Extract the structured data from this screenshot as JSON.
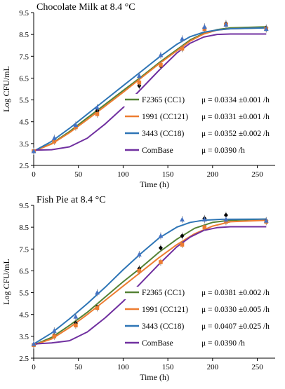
{
  "chart_data": [
    {
      "type": "line",
      "title": "Chocolate Milk at 8.4 °C",
      "xlabel": "Time (h)",
      "ylabel": "Log CFU/mL",
      "xlim": [
        0,
        270
      ],
      "ylim": [
        2.5,
        9.5
      ],
      "xticks": [
        "0",
        "50",
        "100",
        "150",
        "200",
        "250"
      ],
      "yticks": [
        "2.5",
        "3.5",
        "4.5",
        "5.5",
        "6.5",
        "7.5",
        "8.5",
        "9.5"
      ],
      "legend_position": "right",
      "series": [
        {
          "name": "F2365 (CC1)",
          "mu_label": "μ = 0.0334 ±0.001 /h",
          "color": "#548235",
          "marker_color": "#000000",
          "marker": "diamond",
          "points": [
            [
              0,
              3.15
            ],
            [
              23,
              3.65
            ],
            [
              47,
              4.3
            ],
            [
              71,
              5.0
            ],
            [
              118,
              6.15
            ],
            [
              142,
              7.05
            ],
            [
              166,
              7.85
            ],
            [
              191,
              8.8
            ],
            [
              215,
              9.0
            ],
            [
              260,
              8.8
            ]
          ],
          "fit": [
            [
              0,
              3.15
            ],
            [
              20,
              3.5
            ],
            [
              40,
              4.05
            ],
            [
              60,
              4.68
            ],
            [
              80,
              5.3
            ],
            [
              100,
              5.93
            ],
            [
              120,
              6.55
            ],
            [
              140,
              7.2
            ],
            [
              160,
              7.8
            ],
            [
              175,
              8.25
            ],
            [
              190,
              8.55
            ],
            [
              205,
              8.72
            ],
            [
              220,
              8.8
            ],
            [
              260,
              8.85
            ]
          ]
        },
        {
          "name": "1991 (CC121)",
          "mu_label": "μ = 0.0331 ±0.001 /h",
          "color": "#ED7D31",
          "marker_color": "#ED7D31",
          "marker": "square",
          "points": [
            [
              0,
              3.15
            ],
            [
              23,
              3.6
            ],
            [
              47,
              4.25
            ],
            [
              71,
              4.85
            ],
            [
              118,
              6.3
            ],
            [
              142,
              7.1
            ],
            [
              166,
              7.85
            ],
            [
              191,
              8.75
            ],
            [
              215,
              8.95
            ],
            [
              260,
              8.75
            ]
          ],
          "fit": [
            [
              0,
              3.15
            ],
            [
              20,
              3.48
            ],
            [
              40,
              4.0
            ],
            [
              60,
              4.6
            ],
            [
              80,
              5.22
            ],
            [
              100,
              5.85
            ],
            [
              120,
              6.5
            ],
            [
              140,
              7.15
            ],
            [
              160,
              7.75
            ],
            [
              175,
              8.2
            ],
            [
              190,
              8.52
            ],
            [
              205,
              8.7
            ],
            [
              220,
              8.76
            ],
            [
              260,
              8.8
            ]
          ]
        },
        {
          "name": "3443 (CC18)",
          "mu_label": "μ = 0.0352 ±0.002 /h",
          "color": "#2E75B6",
          "marker_color": "#4472C4",
          "marker": "triangle",
          "points": [
            [
              0,
              3.15
            ],
            [
              23,
              3.75
            ],
            [
              47,
              4.35
            ],
            [
              71,
              5.15
            ],
            [
              118,
              6.6
            ],
            [
              142,
              7.55
            ],
            [
              166,
              8.3
            ],
            [
              191,
              8.85
            ],
            [
              215,
              8.95
            ],
            [
              260,
              8.75
            ]
          ],
          "fit": [
            [
              0,
              3.15
            ],
            [
              20,
              3.6
            ],
            [
              40,
              4.2
            ],
            [
              60,
              4.85
            ],
            [
              80,
              5.5
            ],
            [
              100,
              6.15
            ],
            [
              120,
              6.8
            ],
            [
              140,
              7.45
            ],
            [
              160,
              8.05
            ],
            [
              175,
              8.4
            ],
            [
              190,
              8.6
            ],
            [
              205,
              8.7
            ],
            [
              220,
              8.76
            ],
            [
              260,
              8.8
            ]
          ]
        },
        {
          "name": "ComBase",
          "mu_label": "μ = 0.0390 /h",
          "color": "#7030A0",
          "points": [],
          "fit": [
            [
              0,
              3.2
            ],
            [
              20,
              3.22
            ],
            [
              40,
              3.35
            ],
            [
              60,
              3.75
            ],
            [
              80,
              4.4
            ],
            [
              100,
              5.15
            ],
            [
              120,
              6.0
            ],
            [
              140,
              6.85
            ],
            [
              160,
              7.65
            ],
            [
              175,
              8.1
            ],
            [
              190,
              8.38
            ],
            [
              205,
              8.5
            ],
            [
              220,
              8.52
            ],
            [
              260,
              8.52
            ]
          ]
        }
      ]
    },
    {
      "type": "line",
      "title": "Fish Pie at 8.4 °C",
      "xlabel": "Time (h)",
      "ylabel": "Log CFU/mL",
      "xlim": [
        0,
        270
      ],
      "ylim": [
        2.5,
        9.5
      ],
      "xticks": [
        "0",
        "50",
        "100",
        "150",
        "200",
        "250"
      ],
      "yticks": [
        "2.5",
        "3.5",
        "4.5",
        "5.5",
        "6.5",
        "7.5",
        "8.5",
        "9.5"
      ],
      "legend_position": "right",
      "series": [
        {
          "name": "F2365 (CC1)",
          "mu_label": "μ = 0.0381 ±0.002 /h",
          "color": "#548235",
          "marker_color": "#000000",
          "marker": "diamond",
          "points": [
            [
              0,
              3.1
            ],
            [
              23,
              3.55
            ],
            [
              47,
              4.1
            ],
            [
              71,
              4.85
            ],
            [
              118,
              6.6
            ],
            [
              142,
              7.55
            ],
            [
              166,
              8.1
            ],
            [
              191,
              8.9
            ],
            [
              215,
              9.05
            ],
            [
              260,
              8.8
            ]
          ],
          "fit": [
            [
              0,
              3.1
            ],
            [
              20,
              3.45
            ],
            [
              40,
              4.0
            ],
            [
              60,
              4.6
            ],
            [
              80,
              5.3
            ],
            [
              100,
              6.0
            ],
            [
              120,
              6.65
            ],
            [
              140,
              7.35
            ],
            [
              160,
              7.95
            ],
            [
              180,
              8.45
            ],
            [
              200,
              8.72
            ],
            [
              220,
              8.82
            ],
            [
              260,
              8.87
            ]
          ]
        },
        {
          "name": "1991 (CC121)",
          "mu_label": "μ = 0.0330 ±0.005 /h",
          "color": "#ED7D31",
          "marker_color": "#ED7D31",
          "marker": "square",
          "points": [
            [
              0,
              3.1
            ],
            [
              23,
              3.5
            ],
            [
              47,
              4.0
            ],
            [
              71,
              4.8
            ],
            [
              118,
              6.5
            ],
            [
              142,
              6.9
            ],
            [
              166,
              7.7
            ],
            [
              191,
              8.5
            ],
            [
              215,
              8.75
            ],
            [
              260,
              8.75
            ]
          ],
          "fit": [
            [
              0,
              3.1
            ],
            [
              20,
              3.38
            ],
            [
              40,
              3.9
            ],
            [
              60,
              4.5
            ],
            [
              80,
              5.15
            ],
            [
              100,
              5.8
            ],
            [
              120,
              6.45
            ],
            [
              140,
              7.1
            ],
            [
              160,
              7.7
            ],
            [
              180,
              8.2
            ],
            [
              200,
              8.55
            ],
            [
              220,
              8.75
            ],
            [
              260,
              8.82
            ]
          ]
        },
        {
          "name": "3443 (CC18)",
          "mu_label": "μ = 0.0407 ±0.025 /h",
          "color": "#2E75B6",
          "marker_color": "#4472C4",
          "marker": "triangle",
          "points": [
            [
              0,
              3.15
            ],
            [
              23,
              3.75
            ],
            [
              47,
              4.4
            ],
            [
              71,
              5.5
            ],
            [
              118,
              7.25
            ],
            [
              142,
              8.1
            ],
            [
              166,
              8.85
            ],
            [
              191,
              8.85
            ],
            [
              215,
              8.85
            ],
            [
              260,
              8.8
            ]
          ],
          "fit": [
            [
              0,
              3.15
            ],
            [
              20,
              3.65
            ],
            [
              40,
              4.3
            ],
            [
              60,
              5.0
            ],
            [
              80,
              5.75
            ],
            [
              100,
              6.55
            ],
            [
              120,
              7.3
            ],
            [
              140,
              8.0
            ],
            [
              160,
              8.5
            ],
            [
              175,
              8.72
            ],
            [
              190,
              8.82
            ],
            [
              210,
              8.86
            ],
            [
              260,
              8.87
            ]
          ]
        },
        {
          "name": "ComBase",
          "mu_label": "μ = 0.0390 /h",
          "color": "#7030A0",
          "points": [],
          "fit": [
            [
              0,
              3.15
            ],
            [
              20,
              3.2
            ],
            [
              40,
              3.3
            ],
            [
              60,
              3.7
            ],
            [
              80,
              4.35
            ],
            [
              100,
              5.1
            ],
            [
              120,
              5.95
            ],
            [
              140,
              6.8
            ],
            [
              160,
              7.6
            ],
            [
              175,
              8.05
            ],
            [
              190,
              8.35
            ],
            [
              205,
              8.48
            ],
            [
              220,
              8.52
            ],
            [
              260,
              8.52
            ]
          ]
        }
      ]
    }
  ]
}
